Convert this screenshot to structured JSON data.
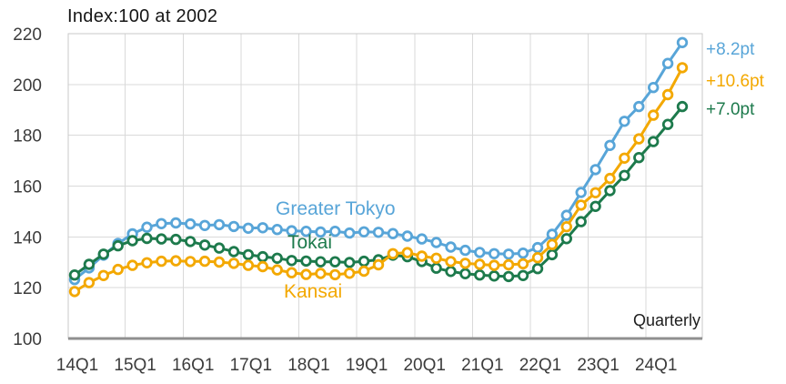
{
  "title": "Index:100 at 2002",
  "footnote": "Quarterly",
  "chart_data": {
    "type": "line",
    "title": "Index:100 at 2002",
    "xlabel": "",
    "ylabel": "",
    "frequency": "Quarterly",
    "ylim": [
      100,
      220
    ],
    "y_ticks": [
      100,
      120,
      140,
      160,
      180,
      200,
      220
    ],
    "x_tick_labels": [
      "14Q1",
      "15Q1",
      "16Q1",
      "17Q1",
      "18Q1",
      "19Q1",
      "20Q1",
      "21Q1",
      "22Q1",
      "23Q1",
      "24Q1"
    ],
    "grid": true,
    "legend": "inline-labels",
    "quarters": [
      "14Q1",
      "14Q2",
      "14Q3",
      "14Q4",
      "15Q1",
      "15Q2",
      "15Q3",
      "15Q4",
      "16Q1",
      "16Q2",
      "16Q3",
      "16Q4",
      "17Q1",
      "17Q2",
      "17Q3",
      "17Q4",
      "18Q1",
      "18Q2",
      "18Q3",
      "18Q4",
      "19Q1",
      "19Q2",
      "19Q3",
      "19Q4",
      "20Q1",
      "20Q2",
      "20Q3",
      "20Q4",
      "21Q1",
      "21Q2",
      "21Q3",
      "21Q4",
      "22Q1",
      "22Q2",
      "22Q3",
      "22Q4",
      "23Q1",
      "23Q2",
      "23Q3",
      "23Q4",
      "24Q1",
      "24Q2",
      "24Q3"
    ],
    "series": [
      {
        "name": "Greater Tokyo",
        "color": "#58a5d8",
        "annotation": "+8.2pt",
        "values": [
          123.2,
          127.8,
          132.8,
          137.4,
          141.2,
          143.8,
          145.2,
          145.5,
          145.1,
          144.5,
          144.8,
          144.1,
          143.4,
          143.6,
          142.9,
          142.4,
          142.2,
          141.9,
          142.2,
          141.5,
          142.0,
          141.8,
          141.3,
          140.3,
          139.2,
          137.8,
          136.0,
          134.7,
          133.9,
          133.4,
          133.2,
          133.6,
          135.8,
          141.0,
          148.5,
          157.5,
          166.5,
          176.0,
          185.5,
          191.3,
          198.8,
          208.3,
          216.5
        ]
      },
      {
        "name": "Tokai",
        "color": "#1d7a4c",
        "annotation": "+7.0pt",
        "values": [
          125.0,
          129.2,
          133.2,
          136.5,
          138.5,
          139.4,
          139.2,
          139.0,
          138.2,
          136.8,
          135.6,
          134.2,
          133.0,
          132.2,
          131.6,
          130.7,
          130.5,
          130.2,
          130.2,
          129.9,
          130.4,
          131.0,
          132.8,
          132.2,
          130.3,
          127.7,
          126.4,
          125.5,
          125.0,
          124.6,
          124.4,
          124.8,
          127.5,
          133.0,
          139.3,
          146.0,
          152.0,
          158.2,
          164.2,
          171.2,
          177.5,
          184.3,
          191.3
        ]
      },
      {
        "name": "Kansai",
        "color": "#f3a800",
        "annotation": "+10.6pt",
        "values": [
          118.5,
          122.0,
          124.8,
          127.2,
          128.8,
          129.8,
          130.4,
          130.6,
          130.3,
          130.4,
          130.1,
          129.6,
          128.8,
          128.3,
          127.0,
          125.9,
          125.2,
          125.6,
          125.1,
          125.7,
          126.5,
          129.0,
          133.4,
          133.8,
          132.4,
          131.6,
          130.3,
          129.6,
          129.2,
          128.8,
          129.0,
          129.4,
          131.8,
          137.0,
          144.0,
          152.5,
          157.4,
          163.0,
          171.0,
          178.6,
          187.9,
          196.0,
          206.6
        ]
      }
    ],
    "colors": {
      "grid": "#d9d9d9",
      "plot_border": "#c9c9c9",
      "x_axis": "#8f8f8f",
      "tick_text": "#3c3c3c",
      "marker_fill": "#ffffff"
    }
  }
}
